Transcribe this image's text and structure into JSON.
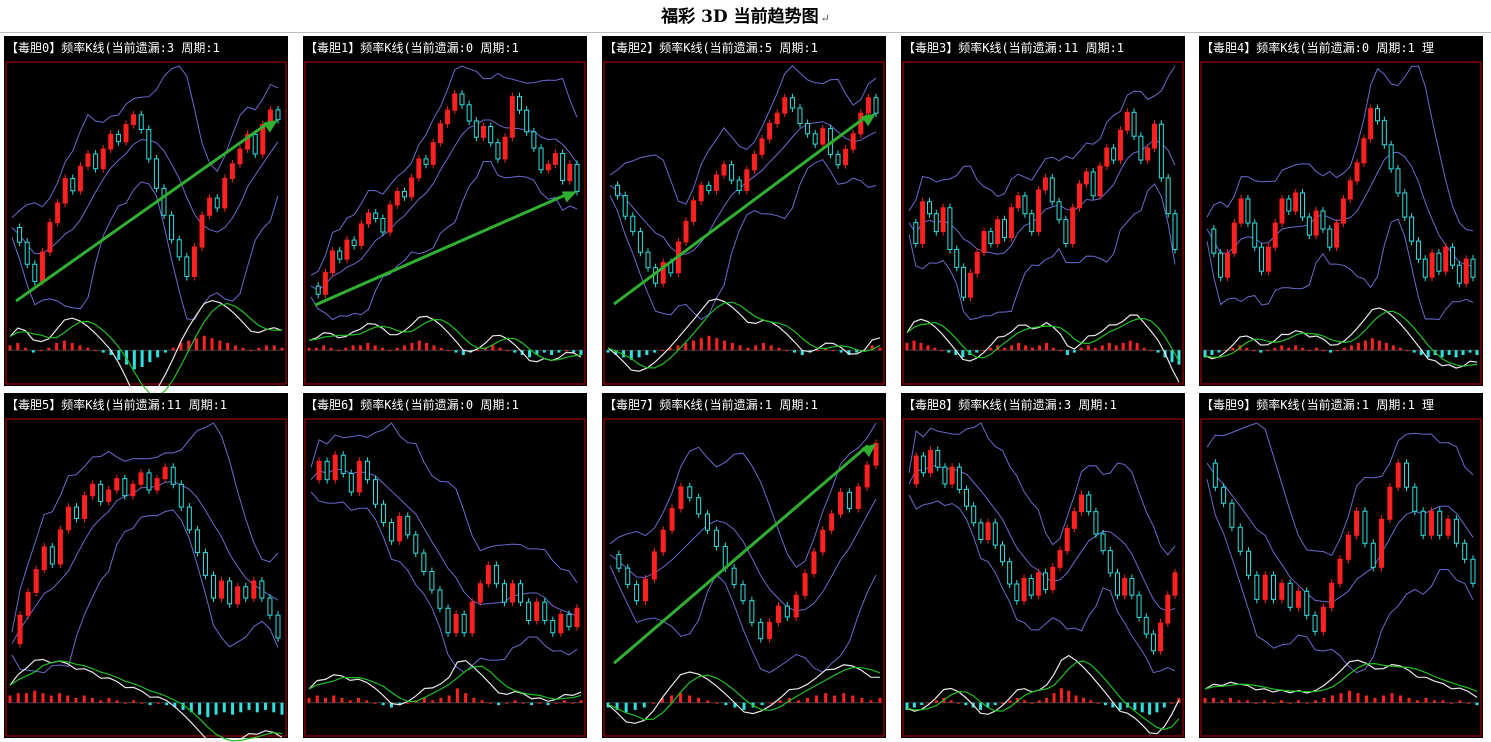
{
  "page": {
    "title": "福彩 3D 当前趋势图",
    "return_mark": "↵"
  },
  "colors": {
    "background": "#000000",
    "frame": "#c00000",
    "candle_up": "#ff2020",
    "candle_down": "#30e0e0",
    "band": "#6a6ad0",
    "macd_fast": "#e8e8e8",
    "macd_slow": "#20c020",
    "trend_arrow": "#30b030",
    "title_text": "#ffffff"
  },
  "chart_data": [
    {
      "type": "candlestick",
      "title": "【毒胆0】频率K线(当前遗漏:3 周期:1",
      "trend_arrow": true,
      "series": [
        {
          "values": [
            50,
            44,
            35,
            28,
            40,
            52,
            60,
            70,
            65,
            75,
            80,
            74,
            82,
            88,
            85,
            92,
            96,
            90,
            78,
            66,
            55,
            45,
            38,
            30,
            42,
            55,
            62,
            58,
            70,
            76,
            82,
            88,
            80,
            92,
            98,
            94
          ]
        }
      ],
      "macd": {
        "hist": [
          2,
          3,
          1,
          -1,
          0,
          1,
          3,
          4,
          3,
          2,
          1,
          0,
          -1,
          -2,
          -4,
          -6,
          -8,
          -7,
          -5,
          -3,
          -1,
          1,
          3,
          4,
          5,
          6,
          5,
          4,
          3,
          2,
          1,
          0,
          1,
          2,
          2,
          1
        ]
      }
    },
    {
      "type": "candlestick",
      "title": "【毒胆1】频率K线(当前遗漏:0 周期:1",
      "trend_arrow": true,
      "series": [
        {
          "values": [
            25,
            22,
            30,
            38,
            35,
            42,
            40,
            48,
            52,
            50,
            45,
            55,
            60,
            58,
            65,
            72,
            70,
            78,
            85,
            90,
            96,
            92,
            86,
            80,
            84,
            78,
            72,
            80,
            95,
            90,
            82,
            76,
            68,
            70,
            74,
            64,
            70,
            60
          ]
        }
      ],
      "macd": {
        "hist": [
          1,
          1,
          2,
          1,
          0,
          1,
          2,
          2,
          3,
          2,
          1,
          0,
          1,
          2,
          3,
          4,
          3,
          2,
          1,
          0,
          -1,
          -2,
          -1,
          0,
          1,
          2,
          1,
          0,
          -1,
          -2,
          -3,
          -2,
          -1,
          -2,
          -1,
          0,
          -1,
          -2
        ]
      }
    },
    {
      "type": "candlestick",
      "title": "【毒胆2】频率K线(当前遗漏:5 周期:1",
      "trend_arrow": true,
      "series": [
        {
          "values": [
            62,
            58,
            50,
            44,
            36,
            30,
            24,
            32,
            28,
            40,
            48,
            56,
            62,
            60,
            66,
            70,
            64,
            60,
            68,
            74,
            80,
            86,
            90,
            96,
            92,
            86,
            82,
            78,
            84,
            74,
            70,
            76,
            82,
            90,
            96,
            90
          ]
        }
      ],
      "macd": {
        "hist": [
          -1,
          -2,
          -3,
          -4,
          -3,
          -2,
          -1,
          0,
          1,
          2,
          3,
          4,
          5,
          6,
          5,
          4,
          3,
          2,
          1,
          2,
          3,
          2,
          1,
          0,
          -1,
          -2,
          -1,
          0,
          1,
          0,
          -1,
          -2,
          -1,
          0,
          2,
          1
        ]
      }
    },
    {
      "type": "candlestick",
      "title": "【毒胆3】频率K线(当前遗漏:11 周期:1",
      "trend_arrow": false,
      "series": [
        {
          "values": [
            55,
            48,
            62,
            58,
            52,
            60,
            46,
            40,
            30,
            38,
            45,
            52,
            48,
            56,
            50,
            60,
            64,
            58,
            52,
            66,
            70,
            62,
            56,
            48,
            60,
            68,
            72,
            64,
            74,
            80,
            76,
            86,
            92,
            84,
            76,
            80,
            88,
            70,
            58,
            46
          ]
        }
      ],
      "macd": {
        "hist": [
          3,
          4,
          3,
          2,
          1,
          0,
          -1,
          -2,
          -3,
          -2,
          -1,
          0,
          1,
          2,
          1,
          2,
          3,
          2,
          1,
          2,
          3,
          1,
          0,
          -2,
          -1,
          1,
          2,
          1,
          2,
          3,
          2,
          3,
          4,
          3,
          1,
          0,
          -1,
          -3,
          -5,
          -6
        ]
      }
    },
    {
      "type": "candlestick",
      "title": "【毒胆4】频率K线(当前遗漏:0 周期:1 理",
      "trend_arrow": false,
      "series": [
        {
          "values": [
            50,
            42,
            34,
            42,
            52,
            60,
            52,
            44,
            36,
            44,
            52,
            60,
            56,
            62,
            54,
            48,
            56,
            50,
            44,
            52,
            60,
            66,
            72,
            80,
            90,
            86,
            78,
            70,
            62,
            54,
            46,
            40,
            34,
            42,
            36,
            44,
            38,
            32,
            40,
            34
          ]
        }
      ],
      "macd": {
        "hist": [
          -3,
          -2,
          -1,
          0,
          1,
          2,
          1,
          0,
          -1,
          0,
          1,
          2,
          1,
          2,
          1,
          0,
          1,
          0,
          -1,
          0,
          1,
          2,
          3,
          4,
          5,
          4,
          3,
          2,
          1,
          0,
          -1,
          -2,
          -3,
          -2,
          -3,
          -2,
          -3,
          -2,
          -1,
          -2
        ]
      }
    },
    {
      "type": "candlestick",
      "title": "【毒胆5】频率K线(当前遗漏:11 周期:1",
      "trend_arrow": false,
      "series": [
        {
          "values": [
            30,
            40,
            48,
            56,
            64,
            58,
            70,
            78,
            74,
            82,
            86,
            80,
            84,
            88,
            82,
            86,
            90,
            84,
            88,
            92,
            86,
            78,
            70,
            62,
            54,
            46,
            52,
            44,
            50,
            46,
            52,
            46,
            40,
            32
          ]
        }
      ],
      "macd": {
        "hist": [
          3,
          4,
          4,
          5,
          4,
          3,
          4,
          3,
          2,
          3,
          2,
          1,
          2,
          1,
          0,
          1,
          0,
          -1,
          0,
          -1,
          -2,
          -3,
          -4,
          -5,
          -6,
          -5,
          -4,
          -5,
          -4,
          -3,
          -4,
          -3,
          -4,
          -5
        ]
      }
    },
    {
      "type": "candlestick",
      "title": "【毒胆6】频率K线(当前遗漏:0 周期:1",
      "trend_arrow": false,
      "series": [
        {
          "values": [
            80,
            86,
            80,
            88,
            82,
            76,
            86,
            80,
            72,
            66,
            60,
            68,
            62,
            56,
            50,
            44,
            38,
            30,
            36,
            30,
            40,
            46,
            52,
            46,
            40,
            46,
            40,
            34,
            40,
            34,
            30,
            36,
            32,
            38
          ]
        }
      ],
      "macd": {
        "hist": [
          2,
          3,
          2,
          3,
          2,
          1,
          2,
          1,
          0,
          -1,
          -2,
          -1,
          0,
          1,
          2,
          1,
          2,
          3,
          6,
          4,
          2,
          1,
          0,
          -1,
          0,
          1,
          0,
          -1,
          0,
          -1,
          0,
          1,
          0,
          1
        ]
      }
    },
    {
      "type": "candlestick",
      "title": "【毒胆7】频率K线(当前遗漏:1 周期:1",
      "trend_arrow": true,
      "series": [
        {
          "values": [
            55,
            50,
            44,
            38,
            46,
            56,
            64,
            72,
            80,
            76,
            70,
            64,
            58,
            50,
            44,
            38,
            30,
            24,
            30,
            36,
            32,
            40,
            48,
            56,
            64,
            70,
            78,
            72,
            80,
            88,
            96
          ]
        }
      ],
      "macd": {
        "hist": [
          -2,
          -3,
          -4,
          -3,
          -2,
          0,
          2,
          3,
          4,
          3,
          2,
          1,
          0,
          -1,
          -2,
          -3,
          -2,
          -1,
          0,
          1,
          2,
          1,
          2,
          3,
          4,
          3,
          4,
          3,
          2,
          1,
          2
        ]
      }
    },
    {
      "type": "candlestick",
      "title": "【毒胆8】频率K线(当前遗漏:3 周期:1",
      "trend_arrow": false,
      "series": [
        {
          "values": [
            80,
            90,
            84,
            92,
            86,
            80,
            86,
            78,
            72,
            66,
            60,
            66,
            58,
            52,
            44,
            38,
            46,
            40,
            48,
            42,
            50,
            56,
            64,
            70,
            76,
            70,
            62,
            56,
            48,
            40,
            46,
            40,
            32,
            26,
            20,
            30,
            40,
            48
          ]
        }
      ],
      "macd": {
        "hist": [
          -3,
          -2,
          -1,
          0,
          1,
          2,
          1,
          0,
          -1,
          -2,
          -3,
          -2,
          -1,
          0,
          1,
          2,
          1,
          0,
          1,
          2,
          4,
          6,
          5,
          3,
          2,
          1,
          0,
          -1,
          -2,
          -3,
          -2,
          -3,
          -4,
          -5,
          -4,
          -2,
          0,
          2
        ]
      }
    },
    {
      "type": "candlestick",
      "title": "【毒胆9】频率K线(当前遗漏:1 周期:1 理",
      "trend_arrow": false,
      "series": [
        {
          "values": [
            70,
            64,
            60,
            54,
            48,
            42,
            36,
            42,
            36,
            40,
            34,
            38,
            32,
            28,
            34,
            40,
            46,
            52,
            58,
            50,
            44,
            56,
            64,
            70,
            64,
            58,
            52,
            58,
            52,
            56,
            50,
            46,
            40
          ]
        }
      ],
      "macd": {
        "hist": [
          2,
          2,
          1,
          2,
          1,
          1,
          0,
          1,
          0,
          1,
          0,
          1,
          0,
          1,
          2,
          3,
          4,
          5,
          4,
          3,
          2,
          3,
          4,
          3,
          2,
          1,
          2,
          1,
          1,
          0,
          1,
          0,
          -1
        ]
      }
    }
  ]
}
